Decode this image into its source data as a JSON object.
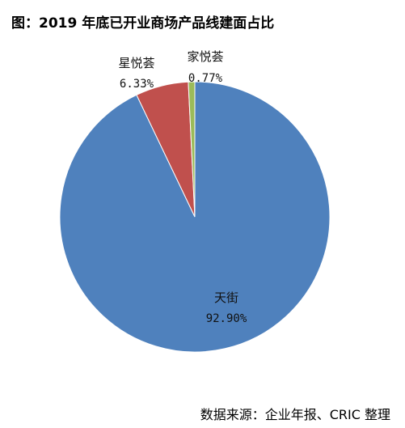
{
  "title": "图：2019 年底已开业商场产品线建面占比",
  "source": "数据来源：企业年报、CRIC 整理",
  "chart_data": {
    "type": "pie",
    "title": "图：2019 年底已开业商场产品线建面占比",
    "legend": "none",
    "slices": [
      {
        "name": "天街",
        "value": 92.9,
        "label": "92.90%",
        "color": "#4F81BD"
      },
      {
        "name": "星悦荟",
        "value": 6.33,
        "label": "6.33%",
        "color": "#C0504D"
      },
      {
        "name": "家悦荟",
        "value": 0.77,
        "label": "0.77%",
        "color": "#9BBB59"
      }
    ]
  }
}
